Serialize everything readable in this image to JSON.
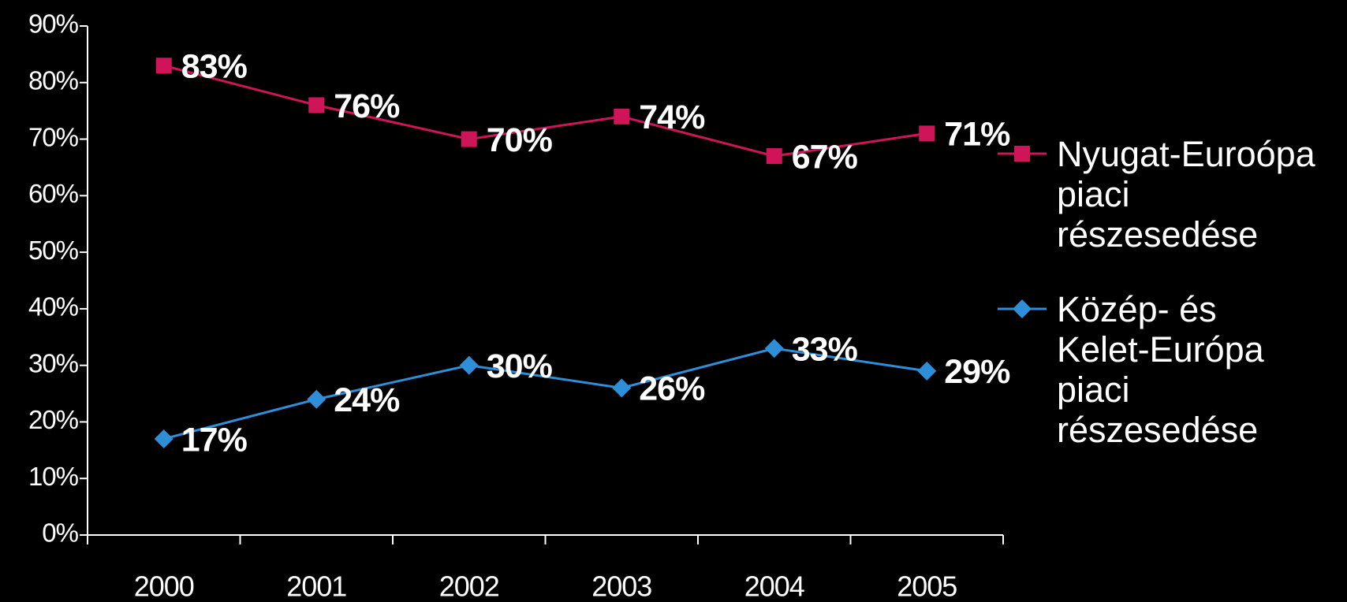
{
  "chart_data": {
    "type": "line",
    "categories": [
      "2000",
      "2001",
      "2002",
      "2003",
      "2004",
      "2005"
    ],
    "series": [
      {
        "name": "Nyugat-Euroópa piaci részesedése",
        "color": "#d0145a",
        "marker": "square",
        "values": [
          83,
          76,
          70,
          74,
          67,
          71
        ],
        "value_labels": [
          "83%",
          "76%",
          "70%",
          "74%",
          "67%",
          "71%"
        ]
      },
      {
        "name": "Közép- és Kelet-Európa piaci részesedése",
        "color": "#2e8fd8",
        "marker": "diamond",
        "values": [
          17,
          24,
          30,
          26,
          33,
          29
        ],
        "value_labels": [
          "17%",
          "24%",
          "30%",
          "26%",
          "33%",
          "29%"
        ]
      }
    ],
    "ylim": [
      0,
      90
    ],
    "yticks": [
      {
        "value": 0,
        "label": "0%"
      },
      {
        "value": 10,
        "label": "10%"
      },
      {
        "value": 20,
        "label": "20%"
      },
      {
        "value": 30,
        "label": "30%"
      },
      {
        "value": 40,
        "label": "40%"
      },
      {
        "value": 50,
        "label": "50%"
      },
      {
        "value": 60,
        "label": "60%"
      },
      {
        "value": 70,
        "label": "70%"
      },
      {
        "value": 80,
        "label": "80%"
      },
      {
        "value": 90,
        "label": "90%"
      }
    ],
    "grid": false,
    "legend": "right"
  }
}
